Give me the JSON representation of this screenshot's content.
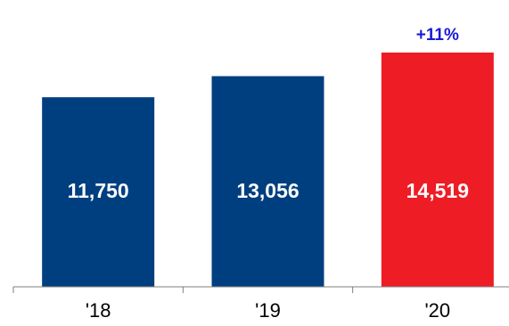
{
  "chart_data": {
    "type": "bar",
    "categories": [
      "'18",
      "'19",
      "'20"
    ],
    "values": [
      11750,
      13056,
      14519
    ],
    "value_labels": [
      "11,750",
      "13,056",
      "14,519"
    ],
    "bar_colors": [
      "#003f7f",
      "#003f7f",
      "#ee1c25"
    ],
    "annotation": {
      "text": "+11%",
      "category_index": 2,
      "color": "#1a1ad6"
    },
    "title": "",
    "xlabel": "",
    "ylabel": "",
    "ylim": [
      0,
      14519
    ],
    "grid": false,
    "legend": "none",
    "y_axis_visible": false
  }
}
